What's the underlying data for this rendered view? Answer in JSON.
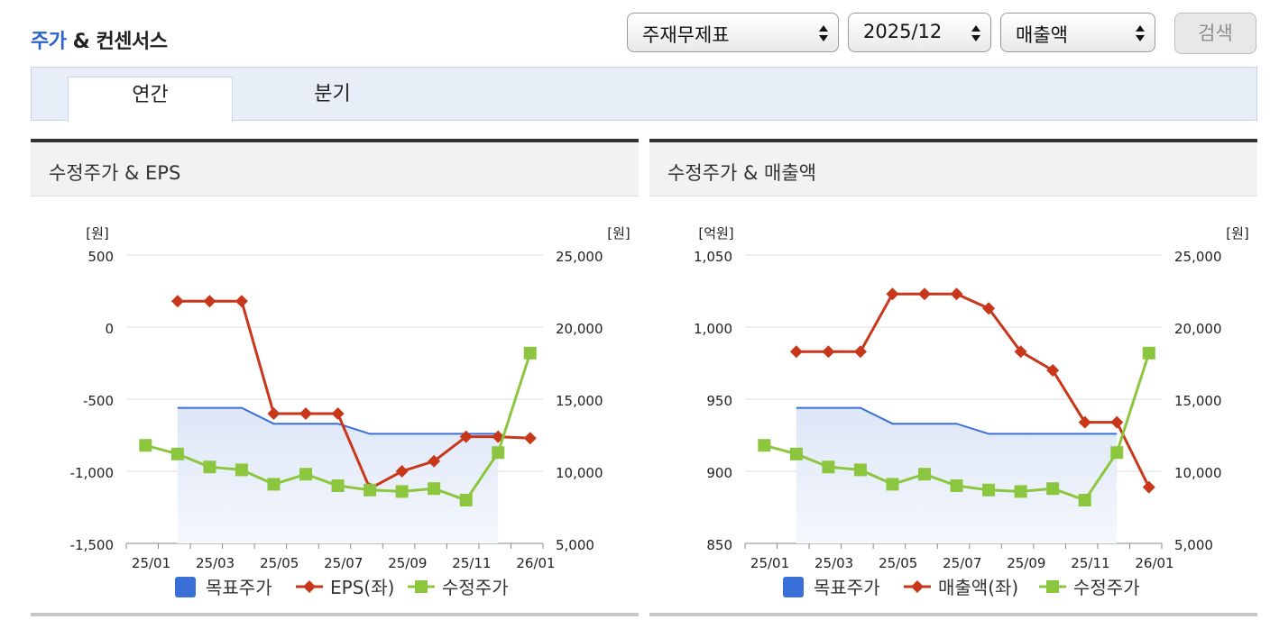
{
  "header": {
    "title_accent": "주가",
    "title_rest": " & 컨센서스"
  },
  "controls": {
    "statement": "주재무제표",
    "period": "2025/12",
    "metric": "매출액",
    "search_label": "검색"
  },
  "tabs": [
    {
      "label": "연간",
      "active": true
    },
    {
      "label": "분기",
      "active": false
    }
  ],
  "colors": {
    "accent": "#2c63c9",
    "target": "#3a6fd8",
    "metric": "#c8371a",
    "price": "#8cc63f"
  },
  "chart_data": [
    {
      "type": "line",
      "title": "수정주가 & EPS",
      "left_unit": "[원]",
      "right_unit": "[원]",
      "x_ticks": [
        "25/01",
        "25/03",
        "25/05",
        "25/07",
        "25/09",
        "25/11",
        "26/01"
      ],
      "left_axis": {
        "min": -1500,
        "max": 500,
        "ticks": [
          "500",
          "0",
          "-500",
          "-1,000",
          "-1,500"
        ]
      },
      "right_axis": {
        "min": 5000,
        "max": 25000,
        "ticks": [
          "25,000",
          "20,000",
          "15,000",
          "10,000",
          "5,000"
        ]
      },
      "series": [
        {
          "name": "목표주가",
          "axis": "right",
          "style": "area",
          "x": [
            1.6,
            3.6,
            4.6,
            6.6,
            7.6,
            11.6
          ],
          "values": [
            14400,
            14400,
            13300,
            13300,
            12600,
            12600
          ]
        },
        {
          "name": "EPS(좌)",
          "axis": "left",
          "style": "diamond",
          "x": [
            1.6,
            2.6,
            3.6,
            4.6,
            5.6,
            6.6,
            7.6,
            8.6,
            9.6,
            10.6,
            11.6,
            12.6
          ],
          "values": [
            180,
            180,
            180,
            -600,
            -600,
            -600,
            -1120,
            -1000,
            -930,
            -760,
            -760,
            -770
          ]
        },
        {
          "name": "수정주가",
          "axis": "right",
          "style": "square",
          "x": [
            0.6,
            1.6,
            2.6,
            3.6,
            4.6,
            5.6,
            6.6,
            7.6,
            8.6,
            9.6,
            10.6,
            11.6,
            12.6
          ],
          "values": [
            11800,
            11200,
            10300,
            10100,
            9100,
            9800,
            9000,
            8700,
            8600,
            8800,
            8000,
            11300,
            18200
          ]
        }
      ],
      "legend": [
        "목표주가",
        "EPS(좌)",
        "수정주가"
      ]
    },
    {
      "type": "line",
      "title": "수정주가 & 매출액",
      "left_unit": "[억원]",
      "right_unit": "[원]",
      "x_ticks": [
        "25/01",
        "25/03",
        "25/05",
        "25/07",
        "25/09",
        "25/11",
        "26/01"
      ],
      "left_axis": {
        "min": 850,
        "max": 1050,
        "ticks": [
          "1,050",
          "1,000",
          "950",
          "900",
          "850"
        ]
      },
      "right_axis": {
        "min": 5000,
        "max": 25000,
        "ticks": [
          "25,000",
          "20,000",
          "15,000",
          "10,000",
          "5,000"
        ]
      },
      "series": [
        {
          "name": "목표주가",
          "axis": "right",
          "style": "area",
          "x": [
            1.6,
            3.6,
            4.6,
            6.6,
            7.6,
            11.6
          ],
          "values": [
            14400,
            14400,
            13300,
            13300,
            12600,
            12600
          ]
        },
        {
          "name": "매출액(좌)",
          "axis": "left",
          "style": "diamond",
          "x": [
            1.6,
            2.6,
            3.6,
            4.6,
            5.6,
            6.6,
            7.6,
            8.6,
            9.6,
            10.6,
            11.6,
            12.6
          ],
          "values": [
            983,
            983,
            983,
            1023,
            1023,
            1023,
            1013,
            983,
            970,
            934,
            934,
            889
          ]
        },
        {
          "name": "수정주가",
          "axis": "right",
          "style": "square",
          "x": [
            0.6,
            1.6,
            2.6,
            3.6,
            4.6,
            5.6,
            6.6,
            7.6,
            8.6,
            9.6,
            10.6,
            11.6,
            12.6
          ],
          "values": [
            11800,
            11200,
            10300,
            10100,
            9100,
            9800,
            9000,
            8700,
            8600,
            8800,
            8000,
            11300,
            18200
          ]
        }
      ],
      "legend": [
        "목표주가",
        "매출액(좌)",
        "수정주가"
      ]
    }
  ]
}
